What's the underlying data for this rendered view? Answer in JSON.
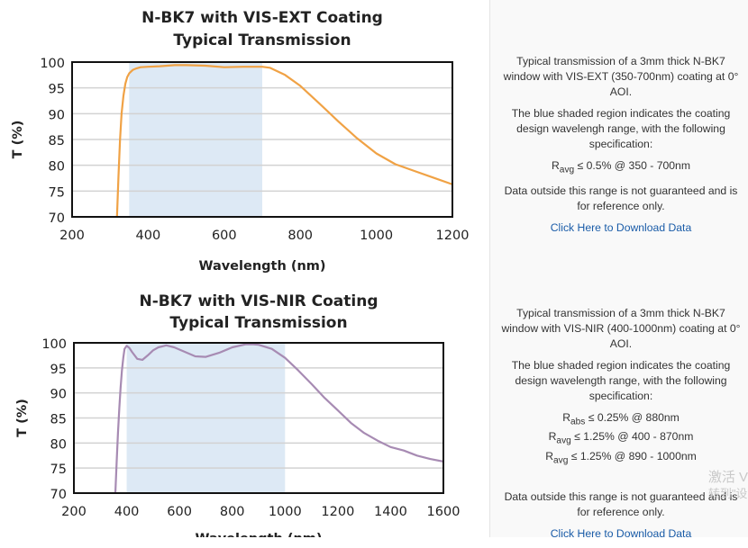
{
  "chart_data": [
    {
      "type": "line",
      "title": "N-BK7 with VIS-EXT Coating",
      "subtitle": "Typical Transmission",
      "xlabel": "Wavelength (nm)",
      "ylabel": "T (%)",
      "xlim": [
        200,
        1200
      ],
      "ylim": [
        70,
        100
      ],
      "xticks": [
        200,
        400,
        600,
        800,
        1000,
        1200
      ],
      "yticks": [
        70,
        75,
        80,
        85,
        90,
        95,
        100
      ],
      "grid": true,
      "shaded_range": [
        350,
        700
      ],
      "line_color": "#f0a245",
      "shade_color": "#dde9f5",
      "series": [
        {
          "x": [
            318,
            322,
            326,
            330,
            335,
            340,
            345,
            350,
            360,
            370,
            380,
            400,
            430,
            470,
            500,
            550,
            600,
            650,
            700,
            720,
            760,
            800,
            850,
            900,
            950,
            1000,
            1050,
            1100,
            1150,
            1200
          ],
          "y": [
            70,
            78,
            85,
            90,
            93.5,
            95.8,
            97.1,
            97.8,
            98.5,
            98.8,
            99.0,
            99.1,
            99.2,
            99.4,
            99.4,
            99.3,
            99.0,
            99.1,
            99.1,
            98.9,
            97.5,
            95.4,
            92.0,
            88.5,
            85.2,
            82.3,
            80.2,
            78.9,
            77.6,
            76.3
          ]
        }
      ]
    },
    {
      "type": "line",
      "title": "N-BK7 with VIS-NIR Coating",
      "subtitle": "Typical Transmission",
      "xlabel": "Wavelength (nm)",
      "ylabel": "T (%)",
      "xlim": [
        200,
        1600
      ],
      "ylim": [
        70,
        100
      ],
      "xticks": [
        200,
        400,
        600,
        800,
        1000,
        1200,
        1400,
        1600
      ],
      "yticks": [
        70,
        75,
        80,
        85,
        90,
        95,
        100
      ],
      "grid": true,
      "shaded_range": [
        400,
        1000
      ],
      "line_color": "#a78bb3",
      "shade_color": "#dde9f5",
      "series": [
        {
          "x": [
            357,
            362,
            367,
            372,
            377,
            382,
            387,
            392,
            400,
            410,
            420,
            440,
            460,
            480,
            500,
            520,
            550,
            580,
            620,
            660,
            700,
            750,
            800,
            850,
            880,
            900,
            950,
            1000,
            1050,
            1100,
            1150,
            1200,
            1250,
            1300,
            1350,
            1400,
            1450,
            1500,
            1550,
            1600
          ],
          "y": [
            70,
            76,
            82,
            87,
            91,
            94.5,
            97,
            98.8,
            99.4,
            99.0,
            98.2,
            96.8,
            96.6,
            97.5,
            98.5,
            99.1,
            99.5,
            99.1,
            98.2,
            97.3,
            97.2,
            98.0,
            99.1,
            99.7,
            99.7,
            99.6,
            98.8,
            97.0,
            94.5,
            91.8,
            89.0,
            86.5,
            84.0,
            82.0,
            80.5,
            79.2,
            78.5,
            77.5,
            76.8,
            76.3
          ]
        }
      ]
    }
  ],
  "panels": [
    {
      "desc": "Typical transmission of a 3mm thick N-BK7 window with VIS-EXT (350-700nm) coating at 0° AOI.",
      "shade_note": "The blue shaded region indicates the coating design wavelengh range, with the following specification:",
      "specs": [
        {
          "sym": "R",
          "sub": "avg",
          "text": " ≤ 0.5% @ 350 - 700nm"
        }
      ],
      "disclaimer": "Data outside this range is not guaranteed and is for reference only.",
      "link": "Click Here to Download Data"
    },
    {
      "desc": "Typical transmission of a 3mm thick N-BK7 window with VIS-NIR (400-1000nm) coating at 0° AOI.",
      "shade_note": "The blue shaded region indicates the coating design wavelength range, with the following specification:",
      "specs": [
        {
          "sym": "R",
          "sub": "abs",
          "text": " ≤ 0.25% @ 880nm"
        },
        {
          "sym": "R",
          "sub": "avg",
          "text": " ≤ 1.25% @ 400 - 870nm"
        },
        {
          "sym": "R",
          "sub": "avg",
          "text": " ≤ 1.25% @ 890 - 1000nm"
        }
      ],
      "disclaimer": "Data outside this range is not guaranteed and is for reference only.",
      "link": "Click Here to Download Data"
    }
  ],
  "watermark": {
    "line1": "激活 V",
    "line2": "转到\"设"
  }
}
